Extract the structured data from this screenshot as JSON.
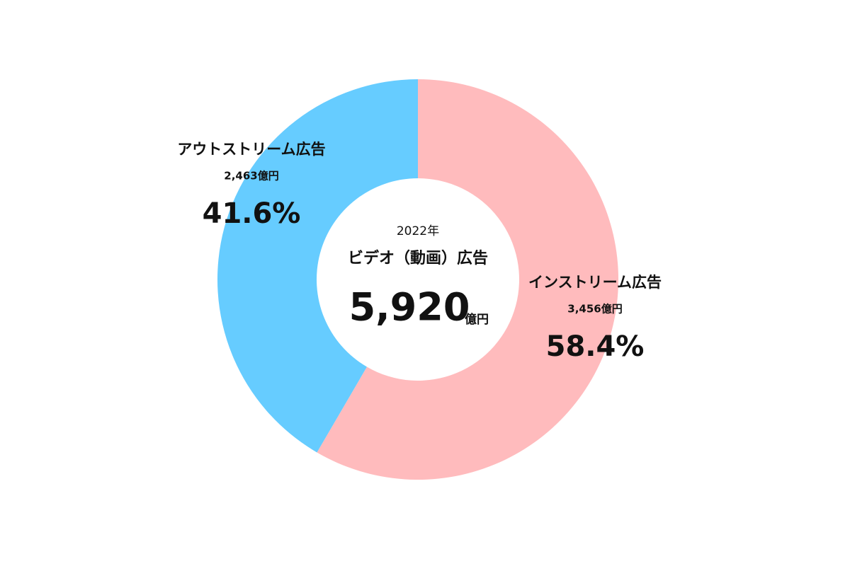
{
  "chart_data": {
    "type": "donut",
    "categories": [
      "インストリーム広告",
      "アウトストリーム広告"
    ],
    "values": [
      58.4,
      41.6
    ],
    "value_labels": [
      "58.4%",
      "41.6%"
    ],
    "amounts": [
      3456,
      2463
    ],
    "amount_labels": [
      "3,456億円",
      "2,463億円"
    ],
    "colors": [
      "#ffbbbd",
      "#66ccff"
    ],
    "center": {
      "year": "2022年",
      "title": "ビデオ（動画）広告",
      "total": 5920,
      "total_label": "5,920",
      "total_unit": "億円"
    }
  }
}
